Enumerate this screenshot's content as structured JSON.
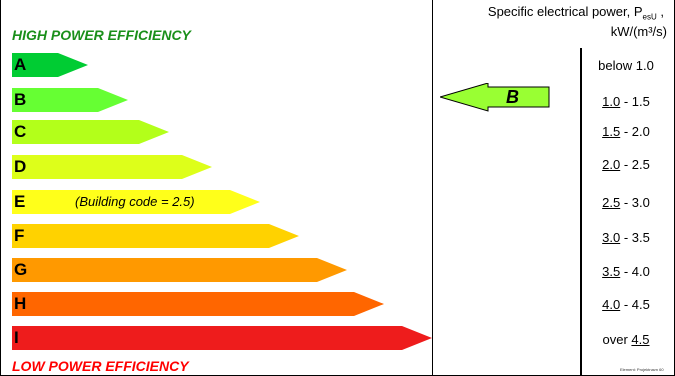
{
  "header": {
    "line1_prefix": "Specific electrical power, P",
    "line1_sub": "esU",
    "line1_suffix": " ,",
    "line2": "kW/(m³/s)"
  },
  "banners": {
    "high": "HIGH POWER EFFICIENCY",
    "high_color": "#1a8f1a",
    "low": "LOW POWER EFFICIENCY",
    "low_color": "#ff0000"
  },
  "classes": [
    {
      "letter": "A",
      "color": "#00cc33",
      "note": ""
    },
    {
      "letter": "B",
      "color": "#66ff33",
      "note": ""
    },
    {
      "letter": "C",
      "color": "#b3ff1a",
      "note": ""
    },
    {
      "letter": "D",
      "color": "#ddff1a",
      "note": ""
    },
    {
      "letter": "E",
      "color": "#ffff1a",
      "note": "(Building code = 2.5)"
    },
    {
      "letter": "F",
      "color": "#ffd200",
      "note": ""
    },
    {
      "letter": "G",
      "color": "#ff9900",
      "note": ""
    },
    {
      "letter": "H",
      "color": "#ff6600",
      "note": ""
    },
    {
      "letter": "I",
      "color": "#ee1c1c",
      "note": ""
    }
  ],
  "ranges": [
    {
      "pre": "below 1.0",
      "u": "",
      "post": ""
    },
    {
      "pre": "",
      "u": "1.0",
      "post": " - 1.5"
    },
    {
      "pre": "",
      "u": "1.5",
      "post": " - 2.0"
    },
    {
      "pre": "",
      "u": "2.0",
      "post": " - 2.5"
    },
    {
      "pre": "",
      "u": "2.5",
      "post": " - 3.0"
    },
    {
      "pre": "",
      "u": "3.0",
      "post": " - 3.5"
    },
    {
      "pre": "",
      "u": "3.5",
      "post": " - 4.0"
    },
    {
      "pre": "",
      "u": "4.0",
      "post": " - 4.5"
    },
    {
      "pre": "over ",
      "u": "4.5",
      "post": ""
    }
  ],
  "pointer": {
    "letter": "B",
    "color": "#99ff33"
  },
  "credit": "Element: Projektnavn 60"
}
